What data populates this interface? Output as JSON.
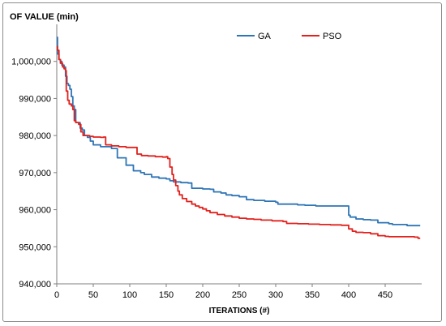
{
  "chart_data": {
    "type": "line",
    "title": "",
    "ylabel": "OF VALUE (min)",
    "xlabel": "ITERATIONS (#)",
    "xlim": [
      0,
      500
    ],
    "ylim": [
      940000,
      1010000
    ],
    "x_ticks": [
      0,
      50,
      100,
      150,
      200,
      250,
      300,
      350,
      400,
      450
    ],
    "y_ticks": [
      940000,
      950000,
      960000,
      970000,
      980000,
      990000,
      1000000
    ],
    "y_tick_labels": [
      "940,000",
      "950,000",
      "960,000",
      "970,000",
      "980,000",
      "990,000",
      "1,000,000"
    ],
    "grid": false,
    "legend_position": "top-right",
    "series": [
      {
        "name": "GA",
        "color": "#2e75b6",
        "points": [
          [
            0,
            1006500
          ],
          [
            1,
            1002000
          ],
          [
            3,
            1000500
          ],
          [
            5,
            1000000
          ],
          [
            7,
            999000
          ],
          [
            10,
            998500
          ],
          [
            12,
            996000
          ],
          [
            14,
            994000
          ],
          [
            16,
            993500
          ],
          [
            18,
            992500
          ],
          [
            20,
            990500
          ],
          [
            22,
            988000
          ],
          [
            24,
            987000
          ],
          [
            26,
            983500
          ],
          [
            28,
            983500
          ],
          [
            32,
            982000
          ],
          [
            35,
            981500
          ],
          [
            38,
            980000
          ],
          [
            42,
            979500
          ],
          [
            46,
            978500
          ],
          [
            50,
            977500
          ],
          [
            55,
            977500
          ],
          [
            60,
            977000
          ],
          [
            65,
            977000
          ],
          [
            70,
            977000
          ],
          [
            75,
            976500
          ],
          [
            80,
            976500
          ],
          [
            83,
            974000
          ],
          [
            90,
            974000
          ],
          [
            95,
            972000
          ],
          [
            100,
            972000
          ],
          [
            105,
            970500
          ],
          [
            110,
            970500
          ],
          [
            115,
            970000
          ],
          [
            120,
            969500
          ],
          [
            130,
            968800
          ],
          [
            140,
            968500
          ],
          [
            150,
            968300
          ],
          [
            155,
            967800
          ],
          [
            160,
            967500
          ],
          [
            170,
            967300
          ],
          [
            180,
            967200
          ],
          [
            185,
            965800
          ],
          [
            200,
            965600
          ],
          [
            210,
            965500
          ],
          [
            215,
            964800
          ],
          [
            225,
            964500
          ],
          [
            232,
            964000
          ],
          [
            240,
            963800
          ],
          [
            250,
            963500
          ],
          [
            260,
            962700
          ],
          [
            270,
            962500
          ],
          [
            285,
            962300
          ],
          [
            300,
            962000
          ],
          [
            303,
            961500
          ],
          [
            330,
            961300
          ],
          [
            340,
            961200
          ],
          [
            355,
            961000
          ],
          [
            375,
            961000
          ],
          [
            395,
            961000
          ],
          [
            400,
            958500
          ],
          [
            402,
            958000
          ],
          [
            410,
            957500
          ],
          [
            420,
            957300
          ],
          [
            430,
            957200
          ],
          [
            440,
            956500
          ],
          [
            455,
            956200
          ],
          [
            460,
            956000
          ],
          [
            470,
            956000
          ],
          [
            480,
            955700
          ],
          [
            498,
            955700
          ]
        ]
      },
      {
        "name": "PSO",
        "color": "#e2201c",
        "points": [
          [
            0,
            1004000
          ],
          [
            1,
            1003000
          ],
          [
            3,
            1000500
          ],
          [
            5,
            999500
          ],
          [
            8,
            998500
          ],
          [
            10,
            998000
          ],
          [
            12,
            997500
          ],
          [
            13,
            992000
          ],
          [
            15,
            989500
          ],
          [
            17,
            988500
          ],
          [
            20,
            988000
          ],
          [
            22,
            987000
          ],
          [
            24,
            984000
          ],
          [
            26,
            983500
          ],
          [
            30,
            983000
          ],
          [
            33,
            981000
          ],
          [
            36,
            980000
          ],
          [
            40,
            980000
          ],
          [
            45,
            979800
          ],
          [
            50,
            979600
          ],
          [
            60,
            979500
          ],
          [
            64,
            979600
          ],
          [
            67,
            977500
          ],
          [
            75,
            977200
          ],
          [
            85,
            977000
          ],
          [
            95,
            976800
          ],
          [
            100,
            976800
          ],
          [
            110,
            975000
          ],
          [
            116,
            974600
          ],
          [
            125,
            974500
          ],
          [
            135,
            974300
          ],
          [
            145,
            974200
          ],
          [
            150,
            974300
          ],
          [
            152,
            973800
          ],
          [
            155,
            971500
          ],
          [
            158,
            969500
          ],
          [
            160,
            968000
          ],
          [
            163,
            966500
          ],
          [
            166,
            965000
          ],
          [
            168,
            964000
          ],
          [
            172,
            963000
          ],
          [
            178,
            962200
          ],
          [
            185,
            961500
          ],
          [
            190,
            961000
          ],
          [
            195,
            960600
          ],
          [
            200,
            960200
          ],
          [
            205,
            959700
          ],
          [
            210,
            959200
          ],
          [
            220,
            958700
          ],
          [
            230,
            958300
          ],
          [
            240,
            958000
          ],
          [
            250,
            957700
          ],
          [
            260,
            957500
          ],
          [
            270,
            957400
          ],
          [
            280,
            957200
          ],
          [
            295,
            957000
          ],
          [
            310,
            956800
          ],
          [
            315,
            956300
          ],
          [
            330,
            956200
          ],
          [
            345,
            956100
          ],
          [
            360,
            956000
          ],
          [
            375,
            955900
          ],
          [
            390,
            955800
          ],
          [
            395,
            955800
          ],
          [
            400,
            954800
          ],
          [
            405,
            954200
          ],
          [
            410,
            953900
          ],
          [
            420,
            953800
          ],
          [
            430,
            953500
          ],
          [
            440,
            953000
          ],
          [
            450,
            952800
          ],
          [
            455,
            952700
          ],
          [
            470,
            952700
          ],
          [
            490,
            952600
          ],
          [
            495,
            952300
          ],
          [
            498,
            952300
          ]
        ]
      }
    ]
  }
}
